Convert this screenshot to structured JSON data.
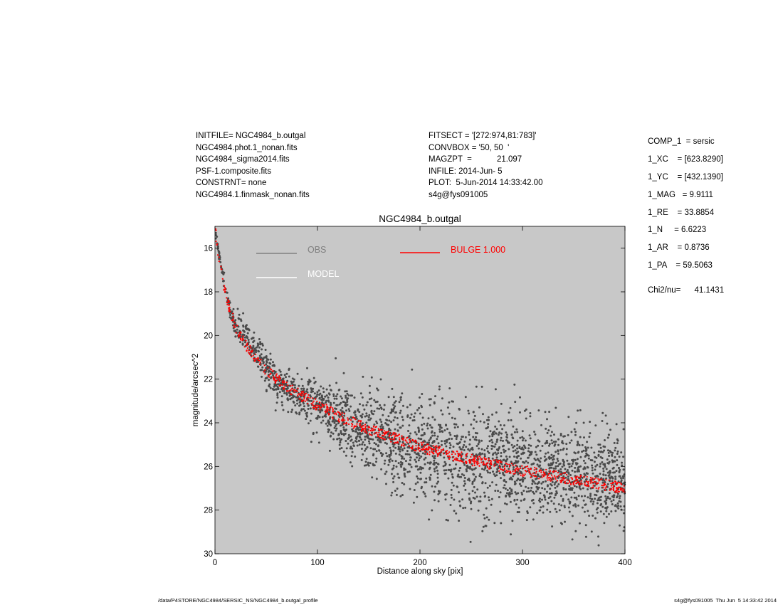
{
  "header_left": [
    "INITFILE= NGC4984_b.outgal",
    "NGC4984.phot.1_nonan.fits",
    "NGC4984_sigma2014.fits",
    "PSF-1.composite.fits",
    "CONSTRNT= none",
    "NGC4984.1.finmask_nonan.fits"
  ],
  "header_mid": [
    "FITSECT = '[272:974,81:783]'",
    "CONVBOX = '50, 50  '",
    "MAGZPT  =           21.097",
    "INFILE: 2014-Jun- 5",
    "PLOT:  5-Jun-2014 14:33:42.00",
    "s4g@fys091005"
  ],
  "components": [
    "COMP_1  = sersic",
    "1_XC    = [623.8290]",
    "1_YC    = [432.1390]",
    "1_MAG   = 9.9111",
    "1_RE    = 33.8854",
    "1_N     = 6.6223",
    "1_AR    = 0.8736",
    "1_PA    = 59.5063"
  ],
  "chi2": "Chi2/nu=      41.1431",
  "footer_left": "/data/P4STORE/NGC4984/SERSIC_NS/NGC4984_b.outgal_profile",
  "footer_right": "s4g@fys091005  Thu Jun  5 14:33:42 2014",
  "chart_data": {
    "type": "scatter",
    "title": "NGC4984_b.outgal",
    "xlabel": "Distance along sky [pix]",
    "ylabel": "magnitude/arcsec^2",
    "xlim": [
      0,
      400
    ],
    "ylim": [
      30,
      15
    ],
    "xticks": [
      0,
      100,
      200,
      300,
      400
    ],
    "yticks": [
      16,
      18,
      20,
      22,
      24,
      26,
      28,
      30
    ],
    "y_inverted": true,
    "background_color": "#c8c8c8",
    "legend": [
      {
        "label": "OBS",
        "color": "#808080"
      },
      {
        "label": "MODEL",
        "color": "#ffffff"
      },
      {
        "label": "BULGE  1.000",
        "color": "#ff0000"
      }
    ],
    "series": [
      {
        "name": "OBS",
        "color": "#4a4a4a",
        "x": [
          0,
          2,
          5,
          10,
          15,
          20,
          25,
          30,
          35,
          40,
          50,
          60,
          75,
          100,
          125,
          150,
          175,
          200,
          250,
          300,
          350,
          400
        ],
        "y": [
          15.0,
          15.7,
          16.6,
          17.9,
          18.9,
          19.6,
          19.8,
          20.0,
          20.3,
          20.7,
          21.5,
          22.1,
          22.6,
          23.2,
          23.7,
          24.3,
          24.8,
          25.2,
          25.7,
          26.0,
          26.3,
          26.6
        ],
        "scatter_sigma": [
          0.1,
          0.1,
          0.1,
          0.15,
          0.2,
          0.25,
          0.3,
          0.35,
          0.4,
          0.4,
          0.45,
          0.45,
          0.5,
          0.6,
          0.8,
          1.0,
          1.1,
          1.2,
          1.2,
          1.1,
          1.1,
          1.1
        ]
      },
      {
        "name": "BULGE  1.000",
        "color": "#ff0000",
        "x": [
          0,
          2,
          5,
          10,
          15,
          20,
          30,
          40,
          50,
          60,
          75,
          100,
          125,
          150,
          175,
          200,
          250,
          300,
          350,
          400
        ],
        "y": [
          15.0,
          15.8,
          16.8,
          18.0,
          18.9,
          19.6,
          20.4,
          21.1,
          21.6,
          22.0,
          22.5,
          23.2,
          23.8,
          24.3,
          24.7,
          25.1,
          25.7,
          26.2,
          26.6,
          27.0
        ],
        "band_width": 0.25
      }
    ]
  }
}
